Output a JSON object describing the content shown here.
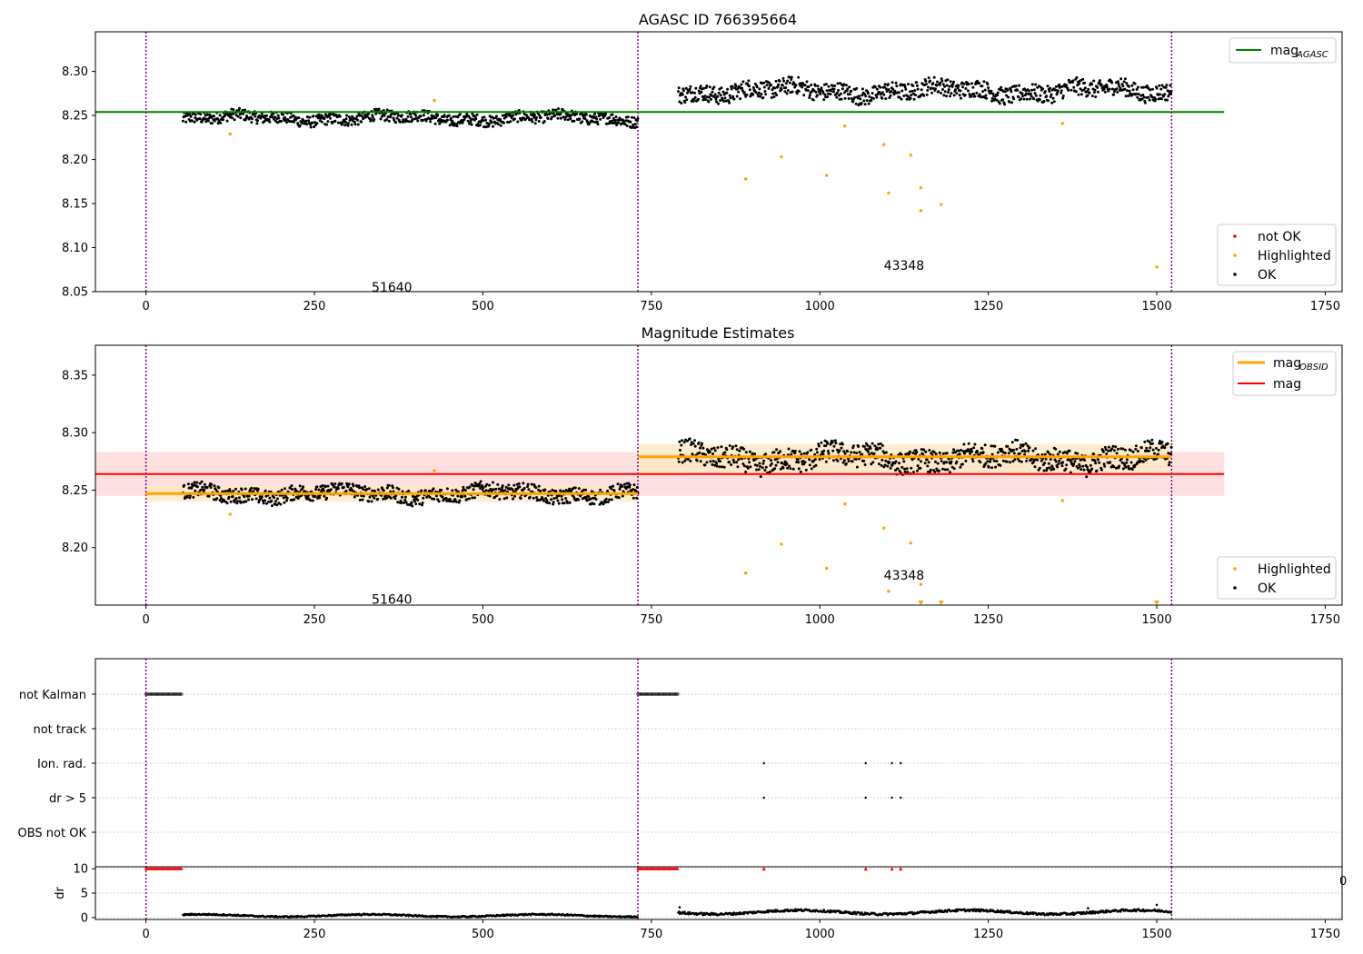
{
  "colors": {
    "ok": "#000000",
    "highlighted": "#ffa500",
    "not_ok": "#ff0000",
    "agasc_line": "#008000",
    "mag_line": "#ff0000",
    "obsid_line": "#ffa500",
    "obsid_boundary": "#800080",
    "band_red": "#ffdddd",
    "band_orange": "#ffe9c4",
    "grid": "#b0b0b0"
  },
  "chart_data": [
    {
      "type": "scatter",
      "title": "AGASC ID 766395664",
      "xlim": [
        -75,
        1775
      ],
      "ylim": [
        8.05,
        8.345
      ],
      "xticks": [
        "0",
        "250",
        "500",
        "750",
        "1000",
        "1250",
        "1500",
        "1750"
      ],
      "yticks": [
        "8.05",
        "8.10",
        "8.15",
        "8.20",
        "8.25",
        "8.30"
      ],
      "obsid_boundaries": [
        0,
        730,
        1522
      ],
      "obsid_labels": [
        {
          "text": "51640",
          "x": 365,
          "y": 8.055
        },
        {
          "text": "43348",
          "x": 1125,
          "y": 8.08
        }
      ],
      "lines": [
        {
          "name": "mag_AGASC",
          "label_main": "mag",
          "label_sub": "AGASC",
          "y": 8.254,
          "x": [
            -75,
            1600
          ]
        }
      ],
      "series": [
        {
          "name": "not OK",
          "points": []
        },
        {
          "name": "Highlighted",
          "points": [
            [
              125,
              8.229
            ],
            [
              428,
              8.267
            ],
            [
              890,
              8.178
            ],
            [
              943,
              8.203
            ],
            [
              1010,
              8.182
            ],
            [
              1037,
              8.238
            ],
            [
              1095,
              8.217
            ],
            [
              1102,
              8.162
            ],
            [
              1135,
              8.205
            ],
            [
              1150,
              8.168
            ],
            [
              1150,
              8.142
            ],
            [
              1180,
              8.149
            ],
            [
              1360,
              8.241
            ],
            [
              1500,
              8.078
            ]
          ]
        },
        {
          "name": "OK",
          "segments": [
            {
              "x0": 55,
              "x1": 730,
              "base": 8.247,
              "amp": 0.012
            },
            {
              "x0": 790,
              "x1": 1522,
              "base": 8.278,
              "amp": 0.018
            }
          ]
        }
      ],
      "legends": [
        {
          "position": "top-right",
          "entries": [
            "mag_AGASC"
          ]
        },
        {
          "position": "bottom-right",
          "entries": [
            "not OK",
            "Highlighted",
            "OK"
          ]
        }
      ]
    },
    {
      "type": "scatter",
      "title": "Magnitude Estimates",
      "xlim": [
        -75,
        1775
      ],
      "ylim": [
        8.15,
        8.376
      ],
      "xticks": [
        "0",
        "250",
        "500",
        "750",
        "1000",
        "1250",
        "1500",
        "1750"
      ],
      "yticks": [
        "8.20",
        "8.25",
        "8.30",
        "8.35"
      ],
      "obsid_boundaries": [
        0,
        730,
        1522
      ],
      "obsid_labels": [
        {
          "text": "51640",
          "x": 365,
          "y": 8.155
        },
        {
          "text": "43348",
          "x": 1125,
          "y": 8.176
        }
      ],
      "lines": [
        {
          "name": "mag",
          "y": 8.264,
          "x": [
            -75,
            1600
          ],
          "band": [
            8.245,
            8.283
          ]
        },
        {
          "name": "mag_OBSID",
          "label_main": "mag",
          "label_sub": "OBSID",
          "segments": [
            {
              "x0": 0,
              "x1": 730,
              "y": 8.247,
              "band": [
                8.24,
                8.254
              ]
            },
            {
              "x0": 730,
              "x1": 1522,
              "y": 8.279,
              "band": [
                8.265,
                8.29
              ]
            }
          ]
        }
      ],
      "series": [
        {
          "name": "Highlighted",
          "points": [
            [
              125,
              8.229
            ],
            [
              428,
              8.267
            ],
            [
              890,
              8.178
            ],
            [
              943,
              8.203
            ],
            [
              1010,
              8.182
            ],
            [
              1037,
              8.238
            ],
            [
              1095,
              8.217
            ],
            [
              1102,
              8.162
            ],
            [
              1135,
              8.204
            ],
            [
              1150,
              8.168
            ],
            [
              1360,
              8.241
            ]
          ]
        },
        {
          "name": "Highlighted-offscale",
          "points": [
            [
              1150,
              8.15
            ],
            [
              1180,
              8.15
            ],
            [
              1500,
              8.15
            ]
          ]
        },
        {
          "name": "OK",
          "segments": [
            {
              "x0": 55,
              "x1": 730,
              "base": 8.247,
              "amp": 0.012
            },
            {
              "x0": 790,
              "x1": 1522,
              "base": 8.278,
              "amp": 0.018
            }
          ]
        }
      ],
      "legends": [
        {
          "position": "top-right",
          "entries": [
            "mag_OBSID",
            "mag"
          ]
        },
        {
          "position": "bottom-right",
          "entries": [
            "Highlighted",
            "OK"
          ]
        }
      ]
    },
    {
      "type": "scatter",
      "title": "",
      "xlim": [
        -75,
        1775
      ],
      "categories": [
        "not Kalman",
        "not track",
        "Ion. rad.",
        "dr > 5",
        "OBS not OK"
      ],
      "obsid_boundaries": [
        0,
        730,
        1522
      ],
      "flags": {
        "not Kalman": {
          "ranges": [
            [
              0,
              53
            ],
            [
              730,
              790
            ]
          ]
        },
        "not track": {
          "ranges": []
        },
        "Ion. rad.": {
          "points": [
            917,
            1068,
            1107,
            1120
          ]
        },
        "dr > 5": {
          "points": [
            917,
            1068,
            1107,
            1120
          ]
        },
        "OBS not OK": {
          "points": []
        }
      }
    },
    {
      "type": "scatter",
      "title": "",
      "ylabel": "dr",
      "xlim": [
        -75,
        1775
      ],
      "ylim": [
        -0.4,
        10.4
      ],
      "xticks": [
        "0",
        "250",
        "500",
        "750",
        "1000",
        "1250",
        "1500",
        "1750"
      ],
      "yticks": [
        "0",
        "5",
        "10"
      ],
      "obsid_boundaries": [
        0,
        730,
        1522
      ],
      "clipped_tick": "0",
      "series": [
        {
          "name": "dr>5 (capped at 10)",
          "ranges": [
            [
              0,
              53
            ],
            [
              730,
              790
            ]
          ],
          "points": [
            917,
            1068,
            1107,
            1120
          ]
        },
        {
          "name": "dr",
          "segments": [
            {
              "x0": 55,
              "x1": 730,
              "base": 0.4,
              "amp": 0.3
            },
            {
              "x0": 790,
              "x1": 1522,
              "base": 1.1,
              "amp": 0.5
            }
          ]
        }
      ]
    }
  ]
}
